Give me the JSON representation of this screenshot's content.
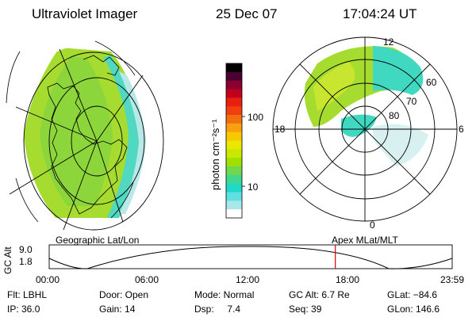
{
  "header": {
    "title": "Ultraviolet Imager",
    "date": "25 Dec 07",
    "time": "17:04:24 UT"
  },
  "colorbar": {
    "label": "photon cm⁻²s⁻¹",
    "ticks": [
      "100",
      "10"
    ],
    "colors": [
      "#000000",
      "#4a0030",
      "#8a0030",
      "#c0001c",
      "#e82010",
      "#f04010",
      "#f07010",
      "#f8a010",
      "#f8c800",
      "#e8e800",
      "#c8e800",
      "#a0e000",
      "#70d850",
      "#40d890",
      "#20d8c8",
      "#60e0e0",
      "#a8e8e8",
      "#ffffff"
    ]
  },
  "left_map": {
    "caption": "Geographic Lat/Lon"
  },
  "right_map": {
    "caption": "Apex MLat/MLT",
    "mlt_labels": {
      "top": "12",
      "left": "18",
      "right": "6",
      "bottom": "0"
    },
    "lat_labels": [
      "60",
      "70",
      "80"
    ]
  },
  "timeline": {
    "ylabel": "GC Alt",
    "yticks": [
      "9.0",
      "1.8"
    ],
    "xticks": [
      "00:00",
      "06:00",
      "12:00",
      "18:00",
      "23:59"
    ],
    "current_fraction": 0.71
  },
  "info": {
    "flt": "Flt: LBHL",
    "door": "Door: Open",
    "mode": "Mode: Normal",
    "gcalt": "GC Alt: 6.7 Re",
    "glat": "GLat: −84.6",
    "ip": "IP: 36.0",
    "gain": "Gain: 14",
    "dsp": "Dsp:     7.4",
    "seq": "Seq: 39",
    "glon": "GLon: 146.6"
  }
}
